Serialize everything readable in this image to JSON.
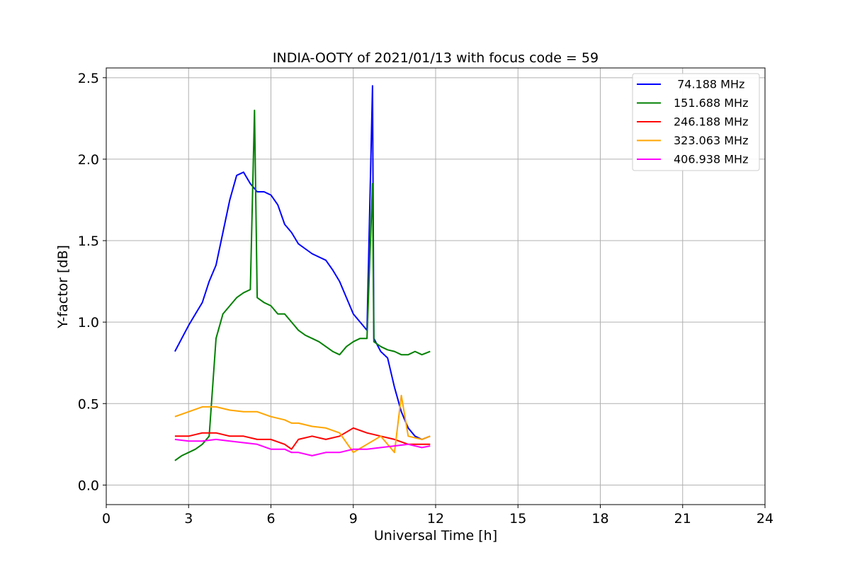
{
  "chart_data": {
    "type": "line",
    "title": "INDIA-OOTY of 2021/01/13 with focus code = 59",
    "xlabel": "Universal Time [h]",
    "ylabel": "Y-factor [dB]",
    "xlim": [
      0,
      24
    ],
    "ylim": [
      -0.12,
      2.56
    ],
    "xticks": [
      0,
      3,
      6,
      9,
      12,
      15,
      18,
      21,
      24
    ],
    "xtick_labels": [
      "0",
      "3",
      "6",
      "9",
      "12",
      "15",
      "18",
      "21",
      "24"
    ],
    "yticks": [
      0.0,
      0.5,
      1.0,
      1.5,
      2.0,
      2.5
    ],
    "ytick_labels": [
      "0.0",
      "0.5",
      "1.0",
      "1.5",
      "2.0",
      "2.5"
    ],
    "grid": true,
    "legend_position": "top-right",
    "series": [
      {
        "name": " 74.188 MHz",
        "color": "#0000ff",
        "x": [
          2.5,
          2.75,
          3.0,
          3.25,
          3.5,
          3.75,
          4.0,
          4.25,
          4.5,
          4.75,
          5.0,
          5.25,
          5.5,
          5.75,
          6.0,
          6.25,
          6.5,
          6.75,
          7.0,
          7.25,
          7.5,
          7.75,
          8.0,
          8.25,
          8.5,
          8.75,
          9.0,
          9.25,
          9.5,
          9.7,
          9.75,
          10.0,
          10.25,
          10.5,
          10.75,
          11.0,
          11.25,
          11.5,
          11.8
        ],
        "y": [
          0.82,
          0.9,
          0.98,
          1.05,
          1.12,
          1.25,
          1.35,
          1.55,
          1.75,
          1.9,
          1.92,
          1.85,
          1.8,
          1.8,
          1.78,
          1.72,
          1.6,
          1.55,
          1.48,
          1.45,
          1.42,
          1.4,
          1.38,
          1.32,
          1.25,
          1.15,
          1.05,
          1.0,
          0.95,
          2.45,
          0.9,
          0.82,
          0.78,
          0.6,
          0.45,
          0.35,
          0.3,
          0.28,
          0.3
        ]
      },
      {
        "name": "151.688 MHz",
        "color": "#008000",
        "x": [
          2.5,
          2.75,
          3.0,
          3.25,
          3.5,
          3.75,
          4.0,
          4.25,
          4.5,
          4.75,
          5.0,
          5.25,
          5.4,
          5.5,
          5.75,
          6.0,
          6.25,
          6.5,
          6.75,
          7.0,
          7.25,
          7.5,
          7.75,
          8.0,
          8.25,
          8.5,
          8.75,
          9.0,
          9.25,
          9.5,
          9.7,
          9.75,
          10.0,
          10.25,
          10.5,
          10.75,
          11.0,
          11.25,
          11.5,
          11.8
        ],
        "y": [
          0.15,
          0.18,
          0.2,
          0.22,
          0.25,
          0.3,
          0.9,
          1.05,
          1.1,
          1.15,
          1.18,
          1.2,
          2.3,
          1.15,
          1.12,
          1.1,
          1.05,
          1.05,
          1.0,
          0.95,
          0.92,
          0.9,
          0.88,
          0.85,
          0.82,
          0.8,
          0.85,
          0.88,
          0.9,
          0.9,
          1.85,
          0.88,
          0.85,
          0.83,
          0.82,
          0.8,
          0.8,
          0.82,
          0.8,
          0.82
        ]
      },
      {
        "name": "246.188 MHz",
        "color": "#ff0000",
        "x": [
          2.5,
          3.0,
          3.5,
          4.0,
          4.5,
          5.0,
          5.5,
          6.0,
          6.5,
          6.75,
          7.0,
          7.5,
          8.0,
          8.5,
          9.0,
          9.5,
          10.0,
          10.5,
          11.0,
          11.5,
          11.8
        ],
        "y": [
          0.3,
          0.3,
          0.32,
          0.32,
          0.3,
          0.3,
          0.28,
          0.28,
          0.25,
          0.22,
          0.28,
          0.3,
          0.28,
          0.3,
          0.35,
          0.32,
          0.3,
          0.28,
          0.25,
          0.25,
          0.25
        ]
      },
      {
        "name": "323.063 MHz",
        "color": "#ffa500",
        "x": [
          2.5,
          3.0,
          3.5,
          4.0,
          4.5,
          5.0,
          5.5,
          6.0,
          6.5,
          6.75,
          7.0,
          7.5,
          8.0,
          8.5,
          9.0,
          9.5,
          10.0,
          10.5,
          10.75,
          11.0,
          11.5,
          11.8
        ],
        "y": [
          0.42,
          0.45,
          0.48,
          0.48,
          0.46,
          0.45,
          0.45,
          0.42,
          0.4,
          0.38,
          0.38,
          0.36,
          0.35,
          0.32,
          0.2,
          0.25,
          0.3,
          0.2,
          0.55,
          0.3,
          0.28,
          0.3
        ]
      },
      {
        "name": "406.938 MHz",
        "color": "#ff00ff",
        "x": [
          2.5,
          3.0,
          3.5,
          4.0,
          4.5,
          5.0,
          5.5,
          6.0,
          6.5,
          6.75,
          7.0,
          7.5,
          8.0,
          8.5,
          9.0,
          9.5,
          10.0,
          10.5,
          11.0,
          11.5,
          11.8
        ],
        "y": [
          0.28,
          0.27,
          0.27,
          0.28,
          0.27,
          0.26,
          0.25,
          0.22,
          0.22,
          0.2,
          0.2,
          0.18,
          0.2,
          0.2,
          0.22,
          0.22,
          0.23,
          0.24,
          0.25,
          0.23,
          0.24
        ]
      }
    ]
  }
}
